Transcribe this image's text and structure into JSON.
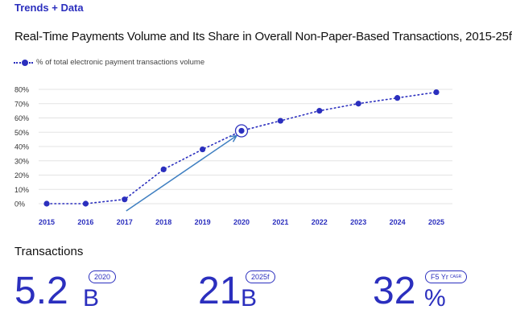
{
  "header": {
    "eyebrow": "Trends + Data",
    "title": "Real-Time Payments Volume and Its Share in Overall Non-Paper-Based Transactions, 2015-25f"
  },
  "chart_data": {
    "type": "line",
    "x": [
      "2015",
      "2016",
      "2017",
      "2018",
      "2019",
      "2020",
      "2021",
      "2022",
      "2023",
      "2024",
      "2025"
    ],
    "series": [
      {
        "name": "% of total electronic payment transactions volume",
        "values": [
          0,
          0,
          3,
          24,
          38,
          51,
          58,
          65,
          70,
          74,
          78
        ]
      }
    ],
    "ylim": [
      0,
      80
    ],
    "yticks": [
      "0%",
      "10%",
      "20%",
      "30%",
      "40%",
      "50%",
      "60%",
      "70%",
      "80%"
    ],
    "highlight": "2020",
    "grid": true,
    "legend": "top-left",
    "color": "#2b2fbe",
    "arrow_color": "#3f7fc1"
  },
  "stats": {
    "label": "Transactions",
    "items": [
      {
        "value": "5.2",
        "unit": "B",
        "tag": "2020",
        "tag_note": ""
      },
      {
        "value": "21",
        "unit": "B",
        "tag": "2025f",
        "tag_note": ""
      },
      {
        "value": "32",
        "unit": "%",
        "tag": "F5 Yr",
        "tag_note": "CAGR"
      }
    ]
  }
}
